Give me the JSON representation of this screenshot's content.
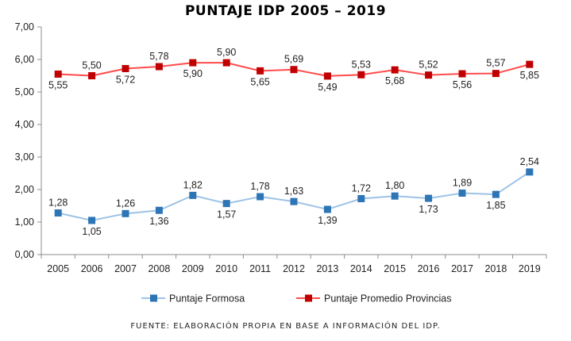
{
  "title": "PUNTAJE IDP 2005 – 2019",
  "source_note": "FUENTE: ELABORACIÓN PROPIA EN BASE A INFORMACIÓN DEL IDP.",
  "chart_data": {
    "type": "line",
    "title": "PUNTAJE IDP 2005 – 2019",
    "xlabel": "",
    "ylabel": "",
    "categories": [
      "2005",
      "2006",
      "2007",
      "2008",
      "2009",
      "2010",
      "2011",
      "2012",
      "2013",
      "2014",
      "2015",
      "2016",
      "2017",
      "2018",
      "2019"
    ],
    "ylim": [
      0,
      7
    ],
    "yticks": [
      "0,00",
      "1,00",
      "2,00",
      "3,00",
      "4,00",
      "5,00",
      "6,00",
      "7,00"
    ],
    "grid": false,
    "legend_position": "bottom",
    "series": [
      {
        "name": "Puntaje Formosa",
        "color": "#2e75b6",
        "line_color": "#9dc3e6",
        "marker": "square",
        "values": [
          1.28,
          1.05,
          1.26,
          1.36,
          1.82,
          1.57,
          1.78,
          1.63,
          1.39,
          1.72,
          1.8,
          1.73,
          1.89,
          1.85,
          2.54
        ],
        "labels": [
          "1,28",
          "1,05",
          "1,26",
          "1,36",
          "1,82",
          "1,57",
          "1,78",
          "1,63",
          "1,39",
          "1,72",
          "1,80",
          "1,73",
          "1,89",
          "1,85",
          "2,54"
        ],
        "label_side": [
          "above",
          "below",
          "above",
          "below",
          "above",
          "below",
          "above",
          "above",
          "below",
          "above",
          "above",
          "below",
          "above",
          "below",
          "above"
        ]
      },
      {
        "name": "Puntaje Promedio Provincias",
        "color": "#c00000",
        "line_color": "#ff4b4b",
        "marker": "square",
        "values": [
          5.55,
          5.5,
          5.72,
          5.78,
          5.9,
          5.9,
          5.65,
          5.69,
          5.49,
          5.53,
          5.68,
          5.52,
          5.56,
          5.57,
          5.85
        ],
        "labels": [
          "5,55",
          "5,50",
          "5,72",
          "5,78",
          "5,90",
          "5,90",
          "5,65",
          "5,69",
          "5,49",
          "5,53",
          "5,68",
          "5,52",
          "5,56",
          "5,57",
          "5,85"
        ],
        "label_side": [
          "below",
          "above",
          "below",
          "above",
          "below",
          "above",
          "below",
          "above",
          "below",
          "above",
          "below",
          "above",
          "below",
          "above",
          "below"
        ]
      }
    ]
  }
}
